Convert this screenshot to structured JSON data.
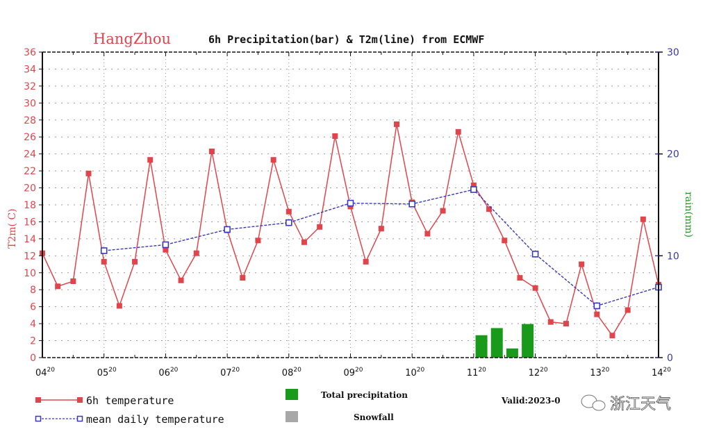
{
  "chart_data": {
    "type": "bar+line",
    "title": {
      "city": "HangZhou",
      "rest": "6h Precipitation(bar) & T2m(line) from ECMWF"
    },
    "ylabel_left": "T2m( C)",
    "ylabel_right": "rain(mm)",
    "ylim_left": [
      0,
      36
    ],
    "ylim_right": [
      0,
      30
    ],
    "yticks_left": [
      "0",
      "2",
      "4",
      "6",
      "8",
      "10",
      "12",
      "14",
      "16",
      "18",
      "20",
      "22",
      "24",
      "26",
      "28",
      "30",
      "32",
      "34",
      "36"
    ],
    "yticks_right": [
      "0",
      "10",
      "20",
      "30"
    ],
    "xlim_days": [
      0,
      10
    ],
    "xticks": [
      {
        "day": "04",
        "hour": "20"
      },
      {
        "day": "05",
        "hour": "20"
      },
      {
        "day": "06",
        "hour": "20"
      },
      {
        "day": "07",
        "hour": "20"
      },
      {
        "day": "08",
        "hour": "20"
      },
      {
        "day": "09",
        "hour": "20"
      },
      {
        "day": "10",
        "hour": "20"
      },
      {
        "day": "11",
        "hour": "20"
      },
      {
        "day": "12",
        "hour": "20"
      },
      {
        "day": "13",
        "hour": "20"
      },
      {
        "day": "14",
        "hour": "20"
      }
    ],
    "grid": true,
    "series": [
      {
        "name": "6h temperature",
        "kind": "line",
        "axis": "left",
        "color": "#e0454c",
        "x_days": [
          0,
          0.25,
          0.5,
          0.75,
          1,
          1.25,
          1.5,
          1.75,
          2,
          2.25,
          2.5,
          2.75,
          3,
          3.25,
          3.5,
          3.75,
          4,
          4.25,
          4.5,
          4.75,
          5,
          5.25,
          5.5,
          5.75,
          6,
          6.25,
          6.5,
          6.75,
          7,
          7.25,
          7.5,
          7.75,
          8,
          8.25,
          8.5,
          8.75,
          9,
          9.25,
          9.5,
          9.75,
          10
        ],
        "values": [
          12.3,
          8.4,
          9.0,
          21.7,
          11.3,
          6.1,
          11.3,
          23.3,
          12.7,
          9.1,
          12.3,
          24.3,
          15.0,
          9.4,
          13.8,
          23.3,
          17.2,
          13.6,
          15.4,
          26.1,
          17.8,
          11.3,
          15.2,
          27.5,
          18.3,
          14.6,
          17.3,
          26.6,
          20.3,
          17.5,
          13.8,
          9.4,
          8.2,
          4.2,
          4.0,
          11.0,
          5.1,
          2.6,
          5.6,
          16.3,
          8.6
        ]
      },
      {
        "name": "mean daily temperature",
        "kind": "line",
        "axis": "left",
        "color": "#3838c0",
        "x_days": [
          1,
          2,
          3,
          4,
          5,
          6,
          7,
          8,
          9,
          10
        ],
        "values": [
          12.6,
          13.3,
          15.1,
          15.9,
          18.2,
          18.1,
          19.8,
          12.2,
          6.1,
          8.3
        ]
      },
      {
        "name": "Total precipitation",
        "kind": "bar",
        "axis": "right",
        "color": "#1a9a1a",
        "x_days": [
          7.25,
          7.5,
          7.75,
          8.0
        ],
        "values": [
          2.2,
          2.9,
          0.9,
          3.3
        ]
      },
      {
        "name": "Snowfall",
        "kind": "bar",
        "axis": "right",
        "color": "#a8a8a8",
        "x_days": [],
        "values": []
      }
    ],
    "legend": {
      "placement": "bottom",
      "items": [
        {
          "label": "6h temperature",
          "color": "#e0454c",
          "marker": "filled-square"
        },
        {
          "label": "mean daily temperature",
          "color": "#3838c0",
          "marker": "hollow-square"
        },
        {
          "label": "Total precipitation",
          "color": "#1a9a1a",
          "marker": "box"
        },
        {
          "label": "Snowfall",
          "color": "#a8a8a8",
          "marker": "box"
        }
      ]
    },
    "annotation": "Valid:2023-0",
    "watermark": "浙江天气"
  }
}
